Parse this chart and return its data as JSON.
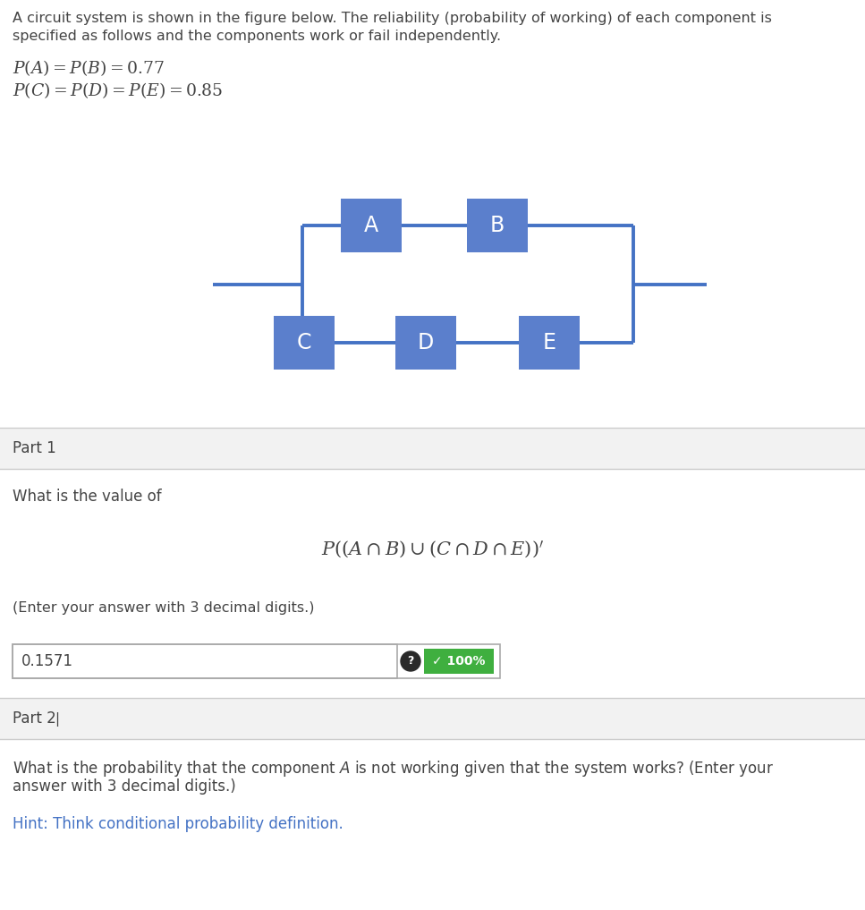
{
  "title_text": "A circuit system is shown in the figure below. The reliability (probability of working) of each component is\nspecified as follows and the components work or fail independently.",
  "prob_line1": "$P(A) = P(B) = 0.77$",
  "prob_line2": "$P(C) = P(D) = P(E) = 0.85$",
  "component_color": "#5b7fcc",
  "wire_color": "#4472c4",
  "text_color": "#444444",
  "components": [
    "A",
    "B",
    "C",
    "D",
    "E"
  ],
  "part1_label": "Part 1",
  "part1_question": "What is the value of",
  "part1_formula": "$P((A\\cap B)\\cup (C\\cap D\\cap E))'$",
  "part1_hint": "(Enter your answer with 3 decimal digits.)",
  "part1_answer": "0.1571",
  "part2_label": "Part 2",
  "part2_question_line1": "What is the probability that the component $A$ is not working given that the system works? (Enter your",
  "part2_question_line2": "answer with 3 decimal digits.)",
  "part2_hint": "Hint: Think conditional probability definition.",
  "bg_color": "#ffffff",
  "section_bg": "#f2f2f2",
  "border_color": "#cccccc",
  "answer_box_border": "#aaaaaa",
  "green_badge_color": "#3faf3f",
  "badge_text": "✓ 100%",
  "hint_color": "#4472c4"
}
